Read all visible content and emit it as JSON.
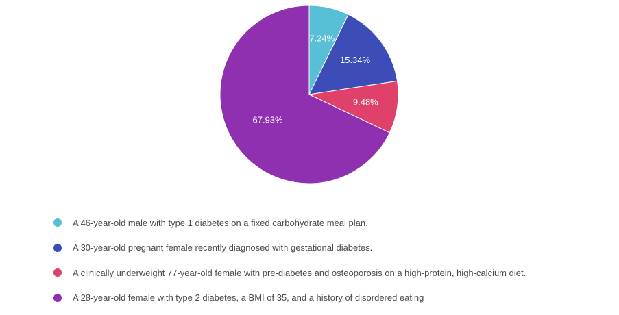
{
  "chart_data": {
    "type": "pie",
    "title": "",
    "slices": [
      {
        "label": "A 46-year-old male with type 1 diabetes on a fixed carbohydrate meal plan.",
        "value": 7.24,
        "display": "7.24%",
        "color": "#58bfd6"
      },
      {
        "label": "A 30-year-old pregnant female recently diagnosed with gestational diabetes.",
        "value": 15.34,
        "display": "15.34%",
        "color": "#3d4db7"
      },
      {
        "label": "A clinically underweight 77-year-old female with pre-diabetes and osteoporosis on a high-protein, high-calcium diet.",
        "value": 9.48,
        "display": "9.48%",
        "color": "#e0416b"
      },
      {
        "label": "A 28-year-old female with type 2 diabetes, a BMI of 35, and a history of disordered eating",
        "value": 67.93,
        "display": "67.93%",
        "color": "#8e30b0"
      }
    ],
    "start_direction": "top",
    "rotation": "clockwise",
    "legend_position": "bottom-left"
  }
}
